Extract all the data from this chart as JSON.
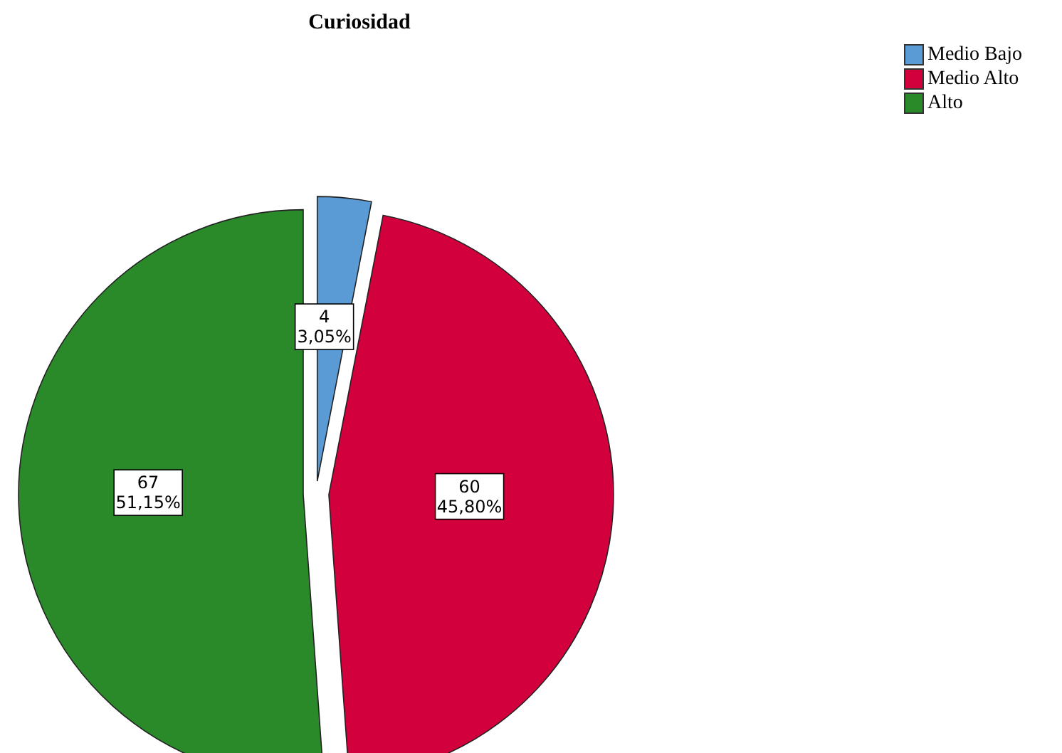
{
  "chart_data": {
    "type": "pie",
    "title": "Curiosidad",
    "categories": [
      "Medio Bajo",
      "Medio Alto",
      "Alto"
    ],
    "values": [
      4,
      60,
      67
    ],
    "colors": [
      "#5b9bd5",
      "#d2003c",
      "#2a8a2a"
    ],
    "value_labels": [
      "4\n3,05%",
      "60\n45,80%",
      "67\n51,15%"
    ],
    "legend": "top right"
  }
}
